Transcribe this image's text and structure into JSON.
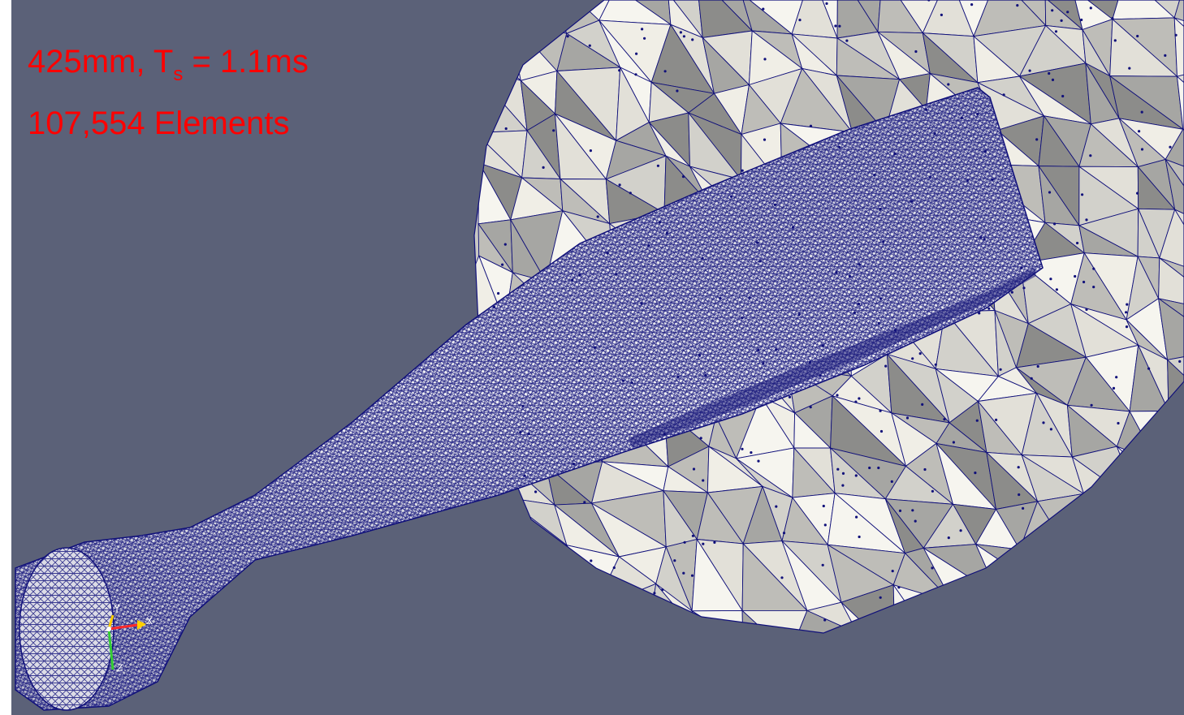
{
  "overlay": {
    "line1_prefix": "425mm, T",
    "line1_subscript": "s",
    "line1_suffix": " = 1.1ms",
    "line2": "107,554 Elements"
  },
  "axes_widget": {
    "x_label": "X",
    "y_label": "Y",
    "z_label": "Z"
  },
  "colors": {
    "background": "#5b6178",
    "mesh_lines": "#10107a",
    "annotation": "#ff0000",
    "solid_light": "#edebe3",
    "solid_mid": "#bebdb8",
    "solid_dark": "#8c8c8a"
  }
}
